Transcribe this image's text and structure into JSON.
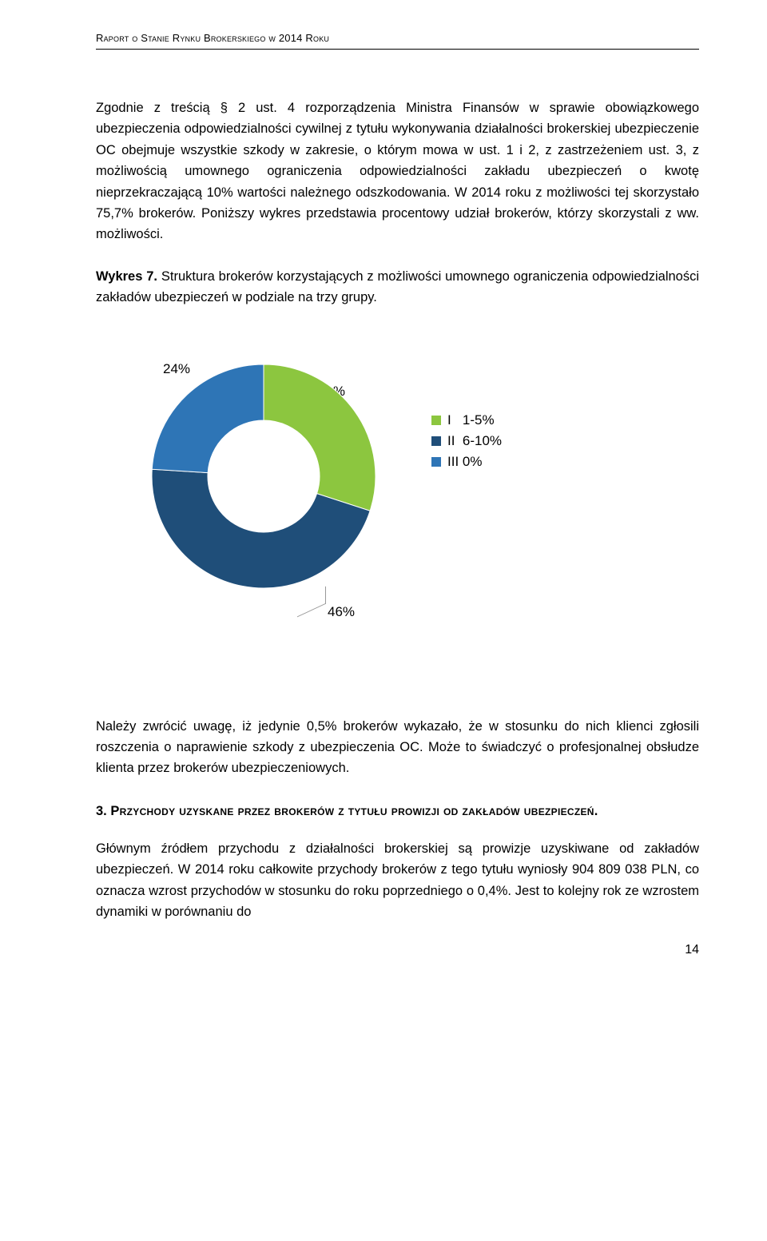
{
  "header": "Raport o Stanie Rynku Brokerskiego w 2014 Roku",
  "para1": "Zgodnie z treścią § 2 ust. 4 rozporządzenia Ministra Finansów w sprawie obowiązkowego ubezpieczenia odpowiedzialności cywilnej z tytułu wykonywania działalności brokerskiej ubezpieczenie OC obejmuje wszystkie szkody w zakresie, o którym mowa w ust. 1 i 2, z zastrzeżeniem ust. 3, z możliwością umownego ograniczenia odpowiedzialności zakładu ubezpieczeń o kwotę nieprzekraczającą 10% wartości należnego odszkodowania. W 2014 roku z możliwości tej skorzystało 75,7% brokerów. Poniższy wykres przedstawia procentowy udział brokerów, którzy skorzystali z ww. możliwości.",
  "sectionTitle_bold": "Wykres 7.",
  "sectionTitle_rest": " Struktura brokerów korzystających z możliwości umownego ograniczenia odpowiedzialności zakładów ubezpieczeń w podziale na trzy grupy.",
  "chart": {
    "type": "donut",
    "slices": [
      {
        "key": "I",
        "label": "I   1-5%",
        "value": 30,
        "color": "#8cc63f"
      },
      {
        "key": "II",
        "label": "II  6-10%",
        "value": 46,
        "color": "#1f4e79"
      },
      {
        "key": "III",
        "label": "III 0%",
        "value": 24,
        "color": "#2e75b6"
      }
    ],
    "inner_radius": 70,
    "outer_radius": 140,
    "size": 300,
    "center_color": "#ffffff",
    "label_24": "24%",
    "label_30": "30%",
    "label_46": "46%",
    "label_fontsize": 17
  },
  "legend": {
    "items": [
      {
        "color": "#8cc63f",
        "text": "I   1-5%"
      },
      {
        "color": "#1f4e79",
        "text": "II  6-10%"
      },
      {
        "color": "#2e75b6",
        "text": "III 0%"
      }
    ]
  },
  "para2": "Należy zwrócić uwagę, iż jedynie 0,5% brokerów wykazało, że w stosunku do nich klienci zgłosili roszczenia o naprawienie szkody z ubezpieczenia OC. Może to świadczyć o profesjonalnej obsłudze klienta przez brokerów ubezpieczeniowych.",
  "heading3_num": "3. ",
  "heading3_caps": "Przychody uzyskane przez brokerów z tytułu prowizji od zakładów ubezpieczeń.",
  "para3": "Głównym źródłem przychodu z działalności brokerskiej są prowizje uzyskiwane od zakładów ubezpieczeń. W 2014 roku całkowite przychody brokerów z tego tytułu wyniosły 904 809 038 PLN, co oznacza wzrost przychodów w stosunku do roku poprzedniego o 0,4%. Jest to kolejny rok ze wzrostem dynamiki w porównaniu do",
  "pageNumber": "14"
}
